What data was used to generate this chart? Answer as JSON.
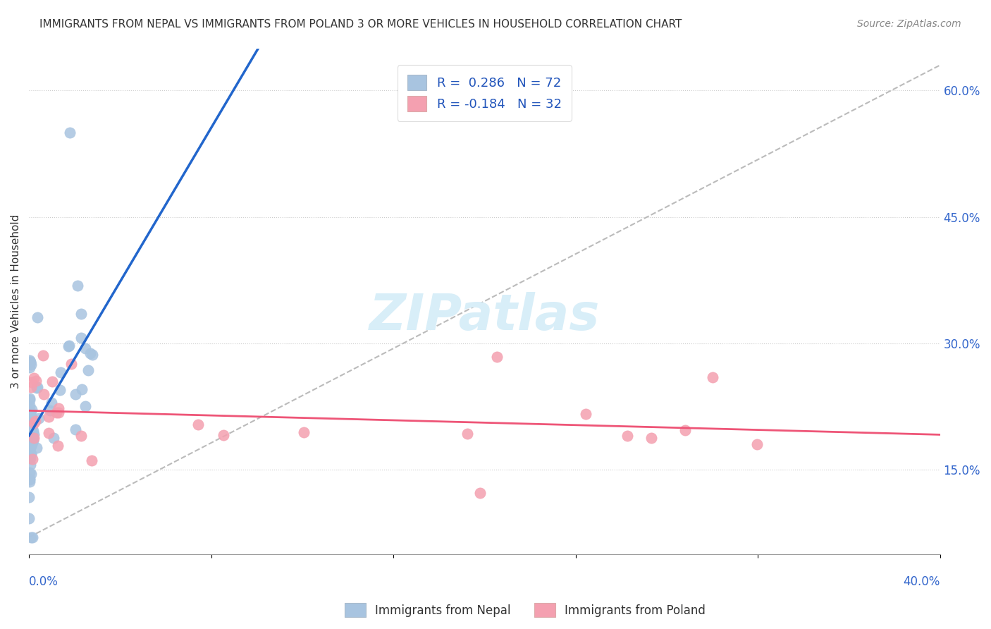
{
  "title": "IMMIGRANTS FROM NEPAL VS IMMIGRANTS FROM POLAND 3 OR MORE VEHICLES IN HOUSEHOLD CORRELATION CHART",
  "source": "Source: ZipAtlas.com",
  "ylabel": "3 or more Vehicles in Household",
  "right_yticks": [
    "60.0%",
    "45.0%",
    "30.0%",
    "15.0%"
  ],
  "right_ytick_vals": [
    0.6,
    0.45,
    0.3,
    0.15
  ],
  "R_nepal": 0.286,
  "N_nepal": 72,
  "R_poland": -0.184,
  "N_poland": 32,
  "nepal_color": "#a8c4e0",
  "poland_color": "#f4a0b0",
  "nepal_line_color": "#2266cc",
  "poland_line_color": "#ee5577",
  "trend_dashed_color": "#bbbbbb",
  "background_color": "#ffffff",
  "xlim": [
    0.0,
    0.4
  ],
  "ylim": [
    0.05,
    0.65
  ],
  "watermark": "ZIPatlas",
  "watermark_color": "#d8eef8",
  "watermark_fontsize": 52
}
